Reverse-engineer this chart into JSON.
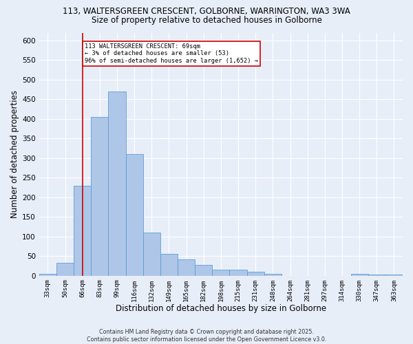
{
  "title1": "113, WALTERSGREEN CRESCENT, GOLBORNE, WARRINGTON, WA3 3WA",
  "title2": "Size of property relative to detached houses in Golborne",
  "xlabel": "Distribution of detached houses by size in Golborne",
  "ylabel": "Number of detached properties",
  "categories": [
    "33sqm",
    "50sqm",
    "66sqm",
    "83sqm",
    "99sqm",
    "116sqm",
    "132sqm",
    "149sqm",
    "165sqm",
    "182sqm",
    "198sqm",
    "215sqm",
    "231sqm",
    "248sqm",
    "264sqm",
    "281sqm",
    "297sqm",
    "314sqm",
    "330sqm",
    "347sqm",
    "363sqm"
  ],
  "values": [
    5,
    32,
    230,
    405,
    470,
    310,
    110,
    55,
    42,
    27,
    15,
    15,
    10,
    4,
    0,
    0,
    0,
    0,
    4,
    3,
    3
  ],
  "bar_color": "#aec6e8",
  "bar_edge_color": "#5a9fd4",
  "vline_x": 2,
  "vline_color": "#cc0000",
  "annotation_text": "113 WALTERSGREEN CRESCENT: 69sqm\n← 3% of detached houses are smaller (53)\n96% of semi-detached houses are larger (1,652) →",
  "annotation_box_color": "#ffffff",
  "annotation_box_edge": "#cc0000",
  "ylim": [
    0,
    620
  ],
  "yticks": [
    0,
    50,
    100,
    150,
    200,
    250,
    300,
    350,
    400,
    450,
    500,
    550,
    600
  ],
  "background_color": "#e8eef8",
  "grid_color": "#ffffff",
  "footer": "Contains HM Land Registry data © Crown copyright and database right 2025.\nContains public sector information licensed under the Open Government Licence v3.0."
}
